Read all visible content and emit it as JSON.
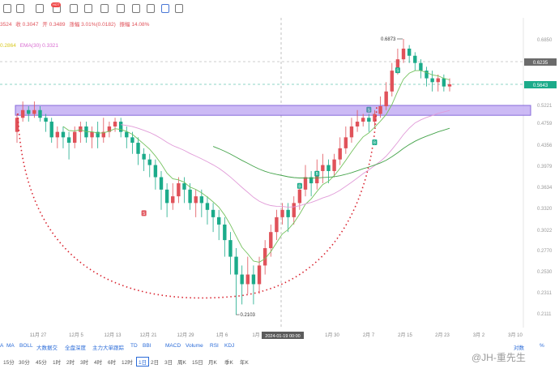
{
  "toolbar": {
    "icons": [
      "cursor-icon",
      "crosshair-icon",
      "line-icon",
      "hot-icon",
      "ruler-icon",
      "pencil-icon",
      "text-icon",
      "measure-icon",
      "note-icon",
      "calendar-icon",
      "eye-icon",
      "filter-icon",
      "trash-icon"
    ],
    "badge": "HOT"
  },
  "indicator_line": {
    "low_value": "3524",
    "close": "收 0.3047",
    "open": "开 0.3489",
    "change": "涨幅 3.01%(0.0182)",
    "amplitude": "振幅 14.08%"
  },
  "ema_line": {
    "ema_a": "0.2864",
    "ema30": "EMA(30) 0.3321"
  },
  "colors": {
    "up": "#e0525a",
    "down": "#1bab8a",
    "zone_fill": "#c7b3f5",
    "zone_border": "#7b5cd6",
    "ema_green": "#74c25e",
    "ema_pink": "#e19bd8",
    "ema_darkgreen": "#44a34a",
    "arc": "#d9232f"
  },
  "chart_data": {
    "type": "candlestick",
    "title": "",
    "xlabel": "",
    "ylabel": "",
    "y_ticks": [
      "0.6850",
      "0.6235",
      "0.5643",
      "0.5221",
      "0.4759",
      "0.4356",
      "0.3979",
      "0.3634",
      "0.3320",
      "0.3022",
      "0.2770",
      "0.2530",
      "0.2311",
      "0.2111"
    ],
    "x_ticks": [
      "11月 27",
      "12月 5",
      "12月 13",
      "12月 21",
      "12月 29",
      "1月 6",
      "1月",
      "2024-01-19 00:00",
      "1月 30",
      "2月 7",
      "2月 15",
      "2月 23",
      "3月 2",
      "3月 10"
    ],
    "high_label": "0.6873",
    "low_label": "0.2103",
    "price_line_labels": [
      "0.6235",
      "0.5643"
    ],
    "crosshair_label": "2024-01-19 00:00",
    "zone": {
      "top": 0.5221,
      "bottom": 0.4965
    },
    "marker_labels": [
      "B",
      "B",
      "S",
      "S",
      "B",
      "S"
    ],
    "candles": [
      [
        0.46,
        0.49,
        0.44,
        0.5
      ],
      [
        0.49,
        0.51,
        0.48,
        0.53
      ],
      [
        0.51,
        0.5,
        0.48,
        0.52
      ],
      [
        0.5,
        0.51,
        0.49,
        0.53
      ],
      [
        0.51,
        0.49,
        0.48,
        0.52
      ],
      [
        0.49,
        0.48,
        0.46,
        0.5
      ],
      [
        0.48,
        0.45,
        0.44,
        0.49
      ],
      [
        0.45,
        0.46,
        0.43,
        0.47
      ],
      [
        0.46,
        0.45,
        0.43,
        0.47
      ],
      [
        0.45,
        0.44,
        0.41,
        0.46
      ],
      [
        0.44,
        0.46,
        0.43,
        0.47
      ],
      [
        0.46,
        0.47,
        0.44,
        0.48
      ],
      [
        0.47,
        0.45,
        0.44,
        0.48
      ],
      [
        0.45,
        0.46,
        0.43,
        0.47
      ],
      [
        0.46,
        0.45,
        0.43,
        0.48
      ],
      [
        0.45,
        0.46,
        0.44,
        0.49
      ],
      [
        0.46,
        0.47,
        0.45,
        0.48
      ],
      [
        0.47,
        0.48,
        0.46,
        0.49
      ],
      [
        0.48,
        0.46,
        0.45,
        0.49
      ],
      [
        0.46,
        0.45,
        0.43,
        0.47
      ],
      [
        0.45,
        0.44,
        0.42,
        0.46
      ],
      [
        0.44,
        0.42,
        0.4,
        0.45
      ],
      [
        0.42,
        0.41,
        0.39,
        0.43
      ],
      [
        0.41,
        0.4,
        0.38,
        0.42
      ],
      [
        0.4,
        0.38,
        0.36,
        0.41
      ],
      [
        0.38,
        0.36,
        0.33,
        0.39
      ],
      [
        0.36,
        0.34,
        0.32,
        0.37
      ],
      [
        0.34,
        0.35,
        0.33,
        0.37
      ],
      [
        0.35,
        0.37,
        0.34,
        0.38
      ],
      [
        0.37,
        0.36,
        0.34,
        0.38
      ],
      [
        0.36,
        0.34,
        0.33,
        0.37
      ],
      [
        0.34,
        0.35,
        0.32,
        0.36
      ],
      [
        0.35,
        0.34,
        0.32,
        0.36
      ],
      [
        0.34,
        0.33,
        0.31,
        0.35
      ],
      [
        0.33,
        0.32,
        0.3,
        0.34
      ],
      [
        0.32,
        0.31,
        0.29,
        0.33
      ],
      [
        0.31,
        0.29,
        0.27,
        0.32
      ],
      [
        0.29,
        0.27,
        0.25,
        0.3
      ],
      [
        0.27,
        0.25,
        0.21,
        0.28
      ],
      [
        0.25,
        0.24,
        0.22,
        0.26
      ],
      [
        0.24,
        0.25,
        0.23,
        0.27
      ],
      [
        0.25,
        0.24,
        0.22,
        0.26
      ],
      [
        0.24,
        0.26,
        0.23,
        0.27
      ],
      [
        0.26,
        0.28,
        0.25,
        0.29
      ],
      [
        0.28,
        0.3,
        0.27,
        0.31
      ],
      [
        0.3,
        0.32,
        0.29,
        0.33
      ],
      [
        0.32,
        0.33,
        0.31,
        0.34
      ],
      [
        0.33,
        0.32,
        0.3,
        0.34
      ],
      [
        0.32,
        0.34,
        0.31,
        0.35
      ],
      [
        0.34,
        0.36,
        0.33,
        0.37
      ],
      [
        0.36,
        0.38,
        0.35,
        0.4
      ],
      [
        0.38,
        0.37,
        0.35,
        0.39
      ],
      [
        0.37,
        0.39,
        0.36,
        0.41
      ],
      [
        0.39,
        0.4,
        0.37,
        0.42
      ],
      [
        0.4,
        0.39,
        0.37,
        0.41
      ],
      [
        0.39,
        0.41,
        0.38,
        0.42
      ],
      [
        0.41,
        0.43,
        0.4,
        0.45
      ],
      [
        0.43,
        0.45,
        0.42,
        0.47
      ],
      [
        0.45,
        0.47,
        0.44,
        0.49
      ],
      [
        0.47,
        0.48,
        0.46,
        0.51
      ],
      [
        0.48,
        0.49,
        0.47,
        0.5
      ],
      [
        0.49,
        0.48,
        0.46,
        0.5
      ],
      [
        0.48,
        0.5,
        0.47,
        0.51
      ],
      [
        0.5,
        0.52,
        0.49,
        0.54
      ],
      [
        0.52,
        0.55,
        0.51,
        0.57
      ],
      [
        0.55,
        0.6,
        0.54,
        0.62
      ],
      [
        0.6,
        0.63,
        0.59,
        0.66
      ],
      [
        0.63,
        0.66,
        0.62,
        0.6873
      ],
      [
        0.66,
        0.64,
        0.62,
        0.67
      ],
      [
        0.64,
        0.62,
        0.6,
        0.65
      ],
      [
        0.62,
        0.6,
        0.58,
        0.63
      ],
      [
        0.6,
        0.58,
        0.56,
        0.61
      ],
      [
        0.58,
        0.57,
        0.55,
        0.6
      ],
      [
        0.57,
        0.58,
        0.55,
        0.59
      ],
      [
        0.58,
        0.56,
        0.55,
        0.59
      ],
      [
        0.56,
        0.5643,
        0.55,
        0.58
      ]
    ]
  },
  "indicator_tabs": [
    "A",
    "MA",
    "BOLL",
    "大数据交",
    "全盘深度",
    "主力大单跟踪",
    "TD",
    "BBI",
    "MACD",
    "Volume",
    "RSI",
    "KDJ"
  ],
  "right_links": [
    "对数",
    "%"
  ],
  "timeframes": [
    "15分",
    "30分",
    "45分",
    "1时",
    "2时",
    "3时",
    "4时",
    "6时",
    "12时",
    "1日",
    "2日",
    "3日",
    "周K",
    "15日",
    "月K",
    "季K",
    "年K"
  ],
  "selected_timeframe": "1日",
  "watermark": "@JH-重先生"
}
